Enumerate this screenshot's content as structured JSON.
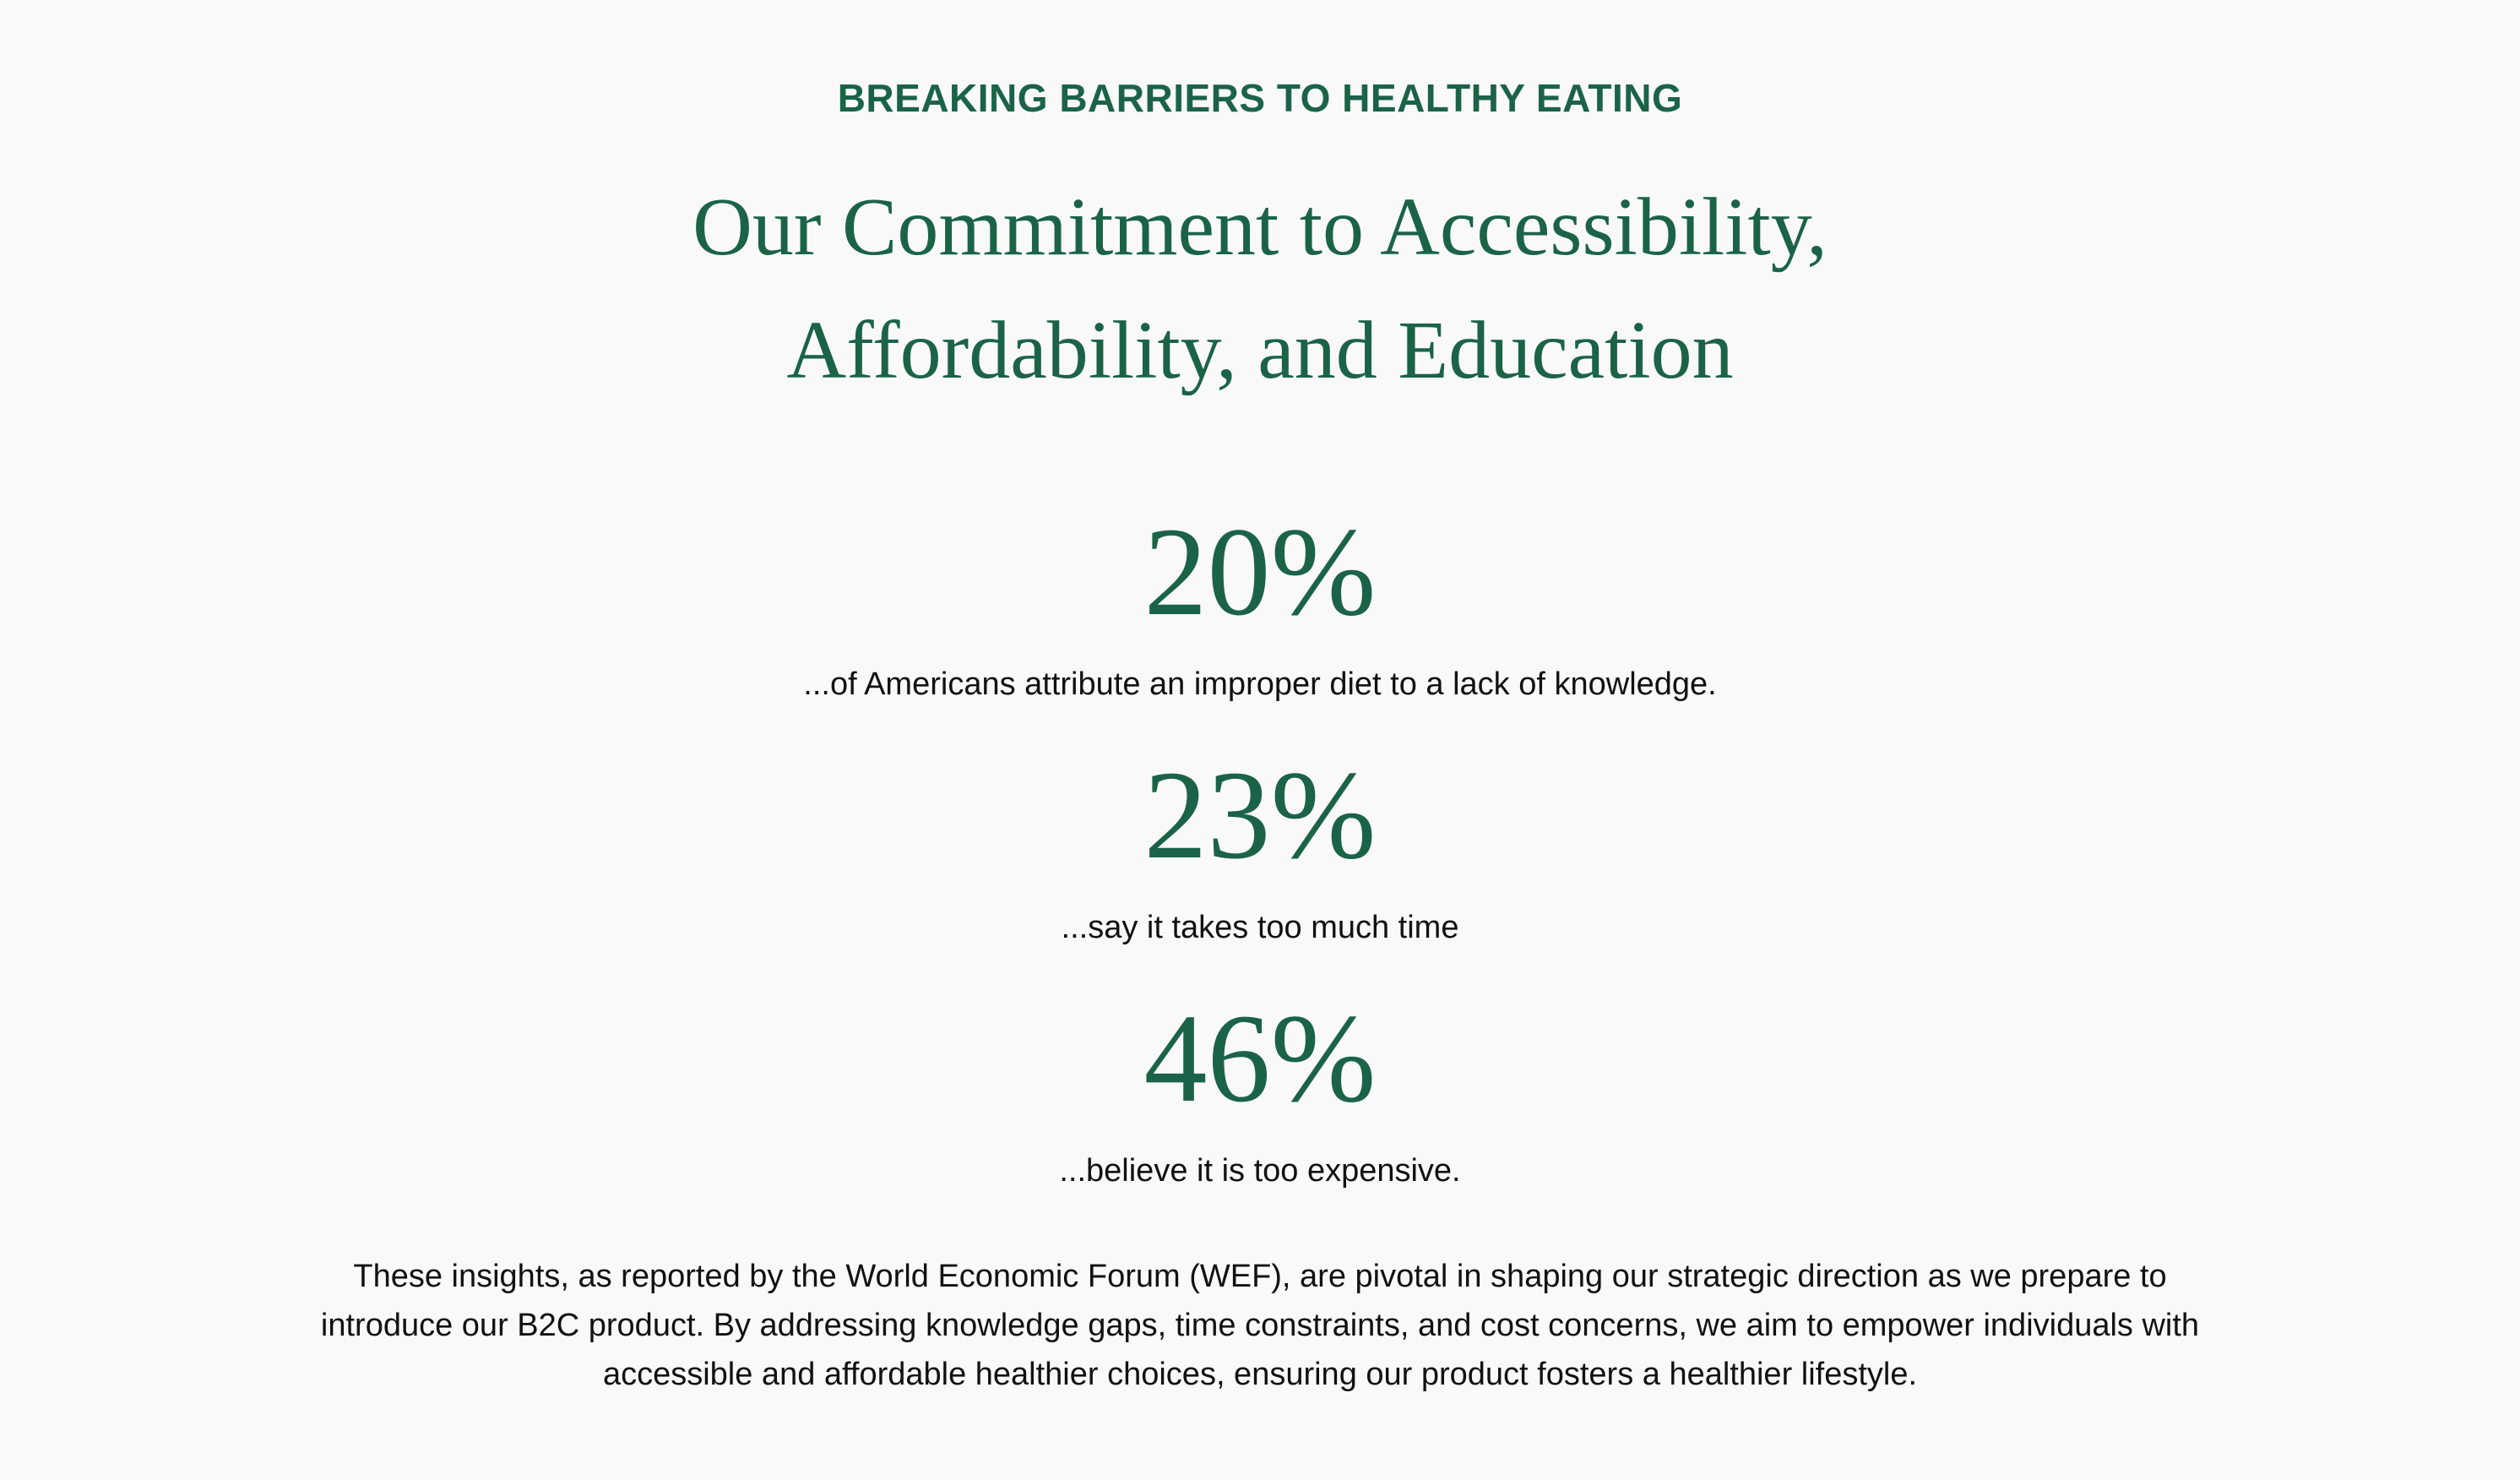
{
  "section": {
    "eyebrow": "BREAKING BARRIERS TO HEALTHY EATING",
    "headline_line1": "Our Commitment to Accessibility,",
    "headline_line2": "Affordability, and Education",
    "stats": [
      {
        "value": "20%",
        "caption": "...of Americans attribute an improper diet to a lack of knowledge."
      },
      {
        "value": "23%",
        "caption": "...say it takes too much time"
      },
      {
        "value": "46%",
        "caption": "...believe it is too expensive."
      }
    ],
    "body_line1": "These insights, as reported by the World Economic Forum (WEF), are pivotal in shaping our strategic direction as we prepare to",
    "body_line2": "introduce our B2C product. By addressing knowledge gaps, time constraints, and cost concerns, we aim to empower individuals with",
    "body_line3": "accessible and affordable healthier choices, ensuring our product fosters a healthier lifestyle."
  },
  "colors": {
    "background": "#f9f9f9",
    "accent_green": "#1b6348",
    "text": "#111111"
  }
}
